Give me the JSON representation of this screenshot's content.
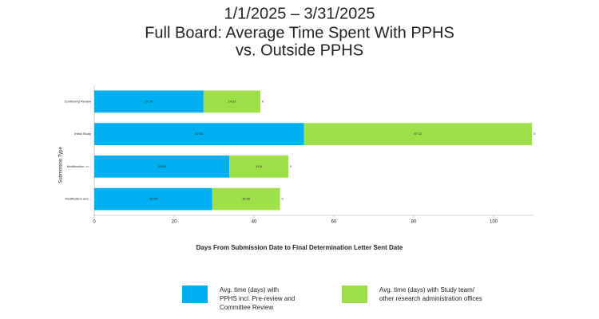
{
  "chart_data": {
    "type": "stacked_barh",
    "title": [
      "1/1/2025 – 3/31/2025",
      "Full Board: Average Time Spent With PPHS",
      "vs. Outside PPHS"
    ],
    "xlabel": "Days From Submission Date to Final Determination Letter Sent Date",
    "ylabel": "Submission Type",
    "categories": [
      "Continuing Review",
      "Initial Study",
      "Modification / o...",
      "Modification and..."
    ],
    "series": [
      {
        "name": "Avg. time (days) with PPHS incl. Pre-review and Committee Review",
        "color": "#00b0f0",
        "values": [
          27.37,
          52.51,
          33.83,
          29.55
        ]
      },
      {
        "name": "Avg. time (days) with Study team/ other research administration offices",
        "color": "#9ee04a",
        "values": [
          14.21,
          57.12,
          14.8,
          16.96
        ]
      },
      {
        "values": [
          0,
          0,
          0,
          0
        ]
      }
    ],
    "xlim": [
      0,
      110
    ],
    "xticks": [
      0,
      20,
      40,
      60,
      80,
      100
    ],
    "grid": false
  }
}
